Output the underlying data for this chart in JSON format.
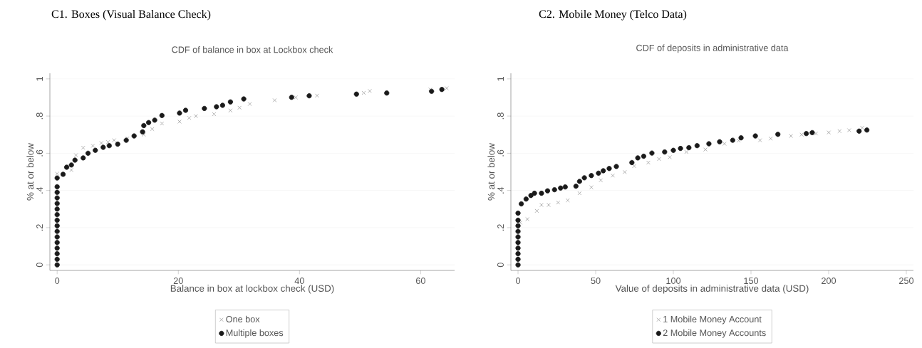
{
  "chart_data": [
    {
      "type": "scatter",
      "title": "C1. Boxes (Visual Balance Check)",
      "subtitle": "CDF of balance in box at Lockbox check",
      "xlabel": "Balance in box at lockbox check (USD)",
      "ylabel": "% at or below",
      "xlim": [
        -1.2,
        65.6
      ],
      "ylim": [
        -0.03,
        1.03
      ],
      "xticks": [
        0,
        20,
        40,
        60
      ],
      "yticks": [
        0,
        {
          "value": 0.2,
          "label": ".2"
        },
        {
          "value": 0.4,
          "label": ".4"
        },
        {
          "value": 0.6,
          "label": ".6"
        },
        {
          "value": 0.8,
          "label": ".8"
        },
        1
      ],
      "grid": "y",
      "legend": "bottom",
      "series": [
        {
          "name": "One box",
          "color": "#a0a0a0",
          "marker": "cross",
          "x": [
            0,
            2.35,
            3.1,
            4.3,
            5.9,
            7.3,
            8.4,
            9.4,
            11.6,
            14.3,
            15.7,
            17.3,
            20.2,
            21.8,
            22.9,
            25.9,
            28.6,
            30.1,
            31.8,
            35.9,
            39.4,
            42.9,
            50.6,
            51.6,
            61.6,
            64.3
          ],
          "values": [
            0.49,
            0.51,
            0.59,
            0.63,
            0.64,
            0.655,
            0.66,
            0.67,
            0.68,
            0.7,
            0.73,
            0.76,
            0.77,
            0.79,
            0.8,
            0.81,
            0.83,
            0.845,
            0.865,
            0.885,
            0.9,
            0.91,
            0.925,
            0.935,
            0.943,
            0.95
          ]
        },
        {
          "name": "Multiple boxes",
          "color": "#1a1a1a",
          "marker": "circle",
          "x": [
            0,
            0,
            0,
            0,
            0,
            0,
            0,
            0,
            0,
            0,
            0,
            0,
            0,
            0,
            0,
            0,
            0.98,
            1.57,
            2.35,
            2.94,
            4.3,
            5.1,
            6.3,
            7.6,
            8.6,
            10,
            11.4,
            12.7,
            14.1,
            14.3,
            15.1,
            16.1,
            17.3,
            20.2,
            21.2,
            24.3,
            26.3,
            27.3,
            28.6,
            30.8,
            38.7,
            41.6,
            49.4,
            54.4,
            61.8,
            63.5
          ],
          "values": [
            0,
            0.03,
            0.06,
            0.09,
            0.12,
            0.15,
            0.18,
            0.21,
            0.24,
            0.27,
            0.3,
            0.33,
            0.36,
            0.39,
            0.42,
            0.467,
            0.487,
            0.525,
            0.537,
            0.563,
            0.575,
            0.6,
            0.616,
            0.632,
            0.641,
            0.649,
            0.67,
            0.693,
            0.715,
            0.749,
            0.765,
            0.778,
            0.803,
            0.816,
            0.831,
            0.841,
            0.85,
            0.858,
            0.876,
            0.892,
            0.901,
            0.909,
            0.918,
            0.924,
            0.933,
            0.943
          ]
        }
      ]
    },
    {
      "type": "scatter",
      "title": "C2. Mobile Money (Telco Data)",
      "subtitle": "CDF of deposits in administrative data",
      "xlabel": "Value of deposits in administrative data (USD)",
      "ylabel": "% at or below",
      "xlim": [
        -4.6,
        254.6
      ],
      "ylim": [
        -0.03,
        1.03
      ],
      "xticks": [
        0,
        50,
        100,
        150,
        200,
        250
      ],
      "yticks": [
        0,
        {
          "value": 0.2,
          "label": ".2"
        },
        {
          "value": 0.4,
          "label": ".4"
        },
        {
          "value": 0.6,
          "label": ".6"
        },
        {
          "value": 0.8,
          "label": ".8"
        },
        1
      ],
      "grid": "y",
      "legend": "bottom",
      "series": [
        {
          "name": "1 Mobile Money Account",
          "color": "#a0a0a0",
          "marker": "cross",
          "x": [
            1.5,
            6,
            12.1,
            15.1,
            19.7,
            25.8,
            32,
            39.6,
            47.2,
            53.3,
            61,
            68.7,
            74.8,
            83.9,
            90.8,
            97.7,
            108.4,
            120.6,
            132.9,
            142.1,
            155.8,
            162.7,
            175.7,
            182.6,
            191.8,
            200.1,
            207,
            213.2,
            221.6
          ],
          "values": [
            0.227,
            0.246,
            0.29,
            0.322,
            0.322,
            0.335,
            0.347,
            0.385,
            0.417,
            0.455,
            0.48,
            0.499,
            0.531,
            0.55,
            0.569,
            0.579,
            0.607,
            0.62,
            0.651,
            0.668,
            0.67,
            0.679,
            0.693,
            0.7,
            0.706,
            0.712,
            0.719,
            0.724,
            0.737
          ]
        },
        {
          "name": "2 Mobile Money Accounts",
          "color": "#1a1a1a",
          "marker": "circle",
          "x": [
            0,
            0,
            0,
            0,
            0,
            0,
            0,
            0,
            0,
            0,
            2.1,
            5.2,
            8.3,
            10.6,
            15.1,
            19,
            23.5,
            27.4,
            30.4,
            37.3,
            39.6,
            42.7,
            47.2,
            51.8,
            54.9,
            58.7,
            63.3,
            73.3,
            77.1,
            80.9,
            86.2,
            94.4,
            100,
            104.6,
            110,
            115.3,
            122.9,
            129.8,
            138.2,
            143.6,
            152.8,
            167.3,
            185.6,
            189.4,
            219.6,
            224.6
          ],
          "values": [
            0,
            0.03,
            0.06,
            0.09,
            0.12,
            0.15,
            0.18,
            0.21,
            0.24,
            0.278,
            0.328,
            0.354,
            0.373,
            0.385,
            0.385,
            0.398,
            0.404,
            0.413,
            0.419,
            0.423,
            0.449,
            0.468,
            0.48,
            0.493,
            0.506,
            0.518,
            0.529,
            0.55,
            0.575,
            0.584,
            0.601,
            0.607,
            0.616,
            0.626,
            0.63,
            0.641,
            0.651,
            0.662,
            0.67,
            0.683,
            0.693,
            0.702,
            0.706,
            0.711,
            0.719,
            0.725
          ]
        }
      ]
    }
  ]
}
